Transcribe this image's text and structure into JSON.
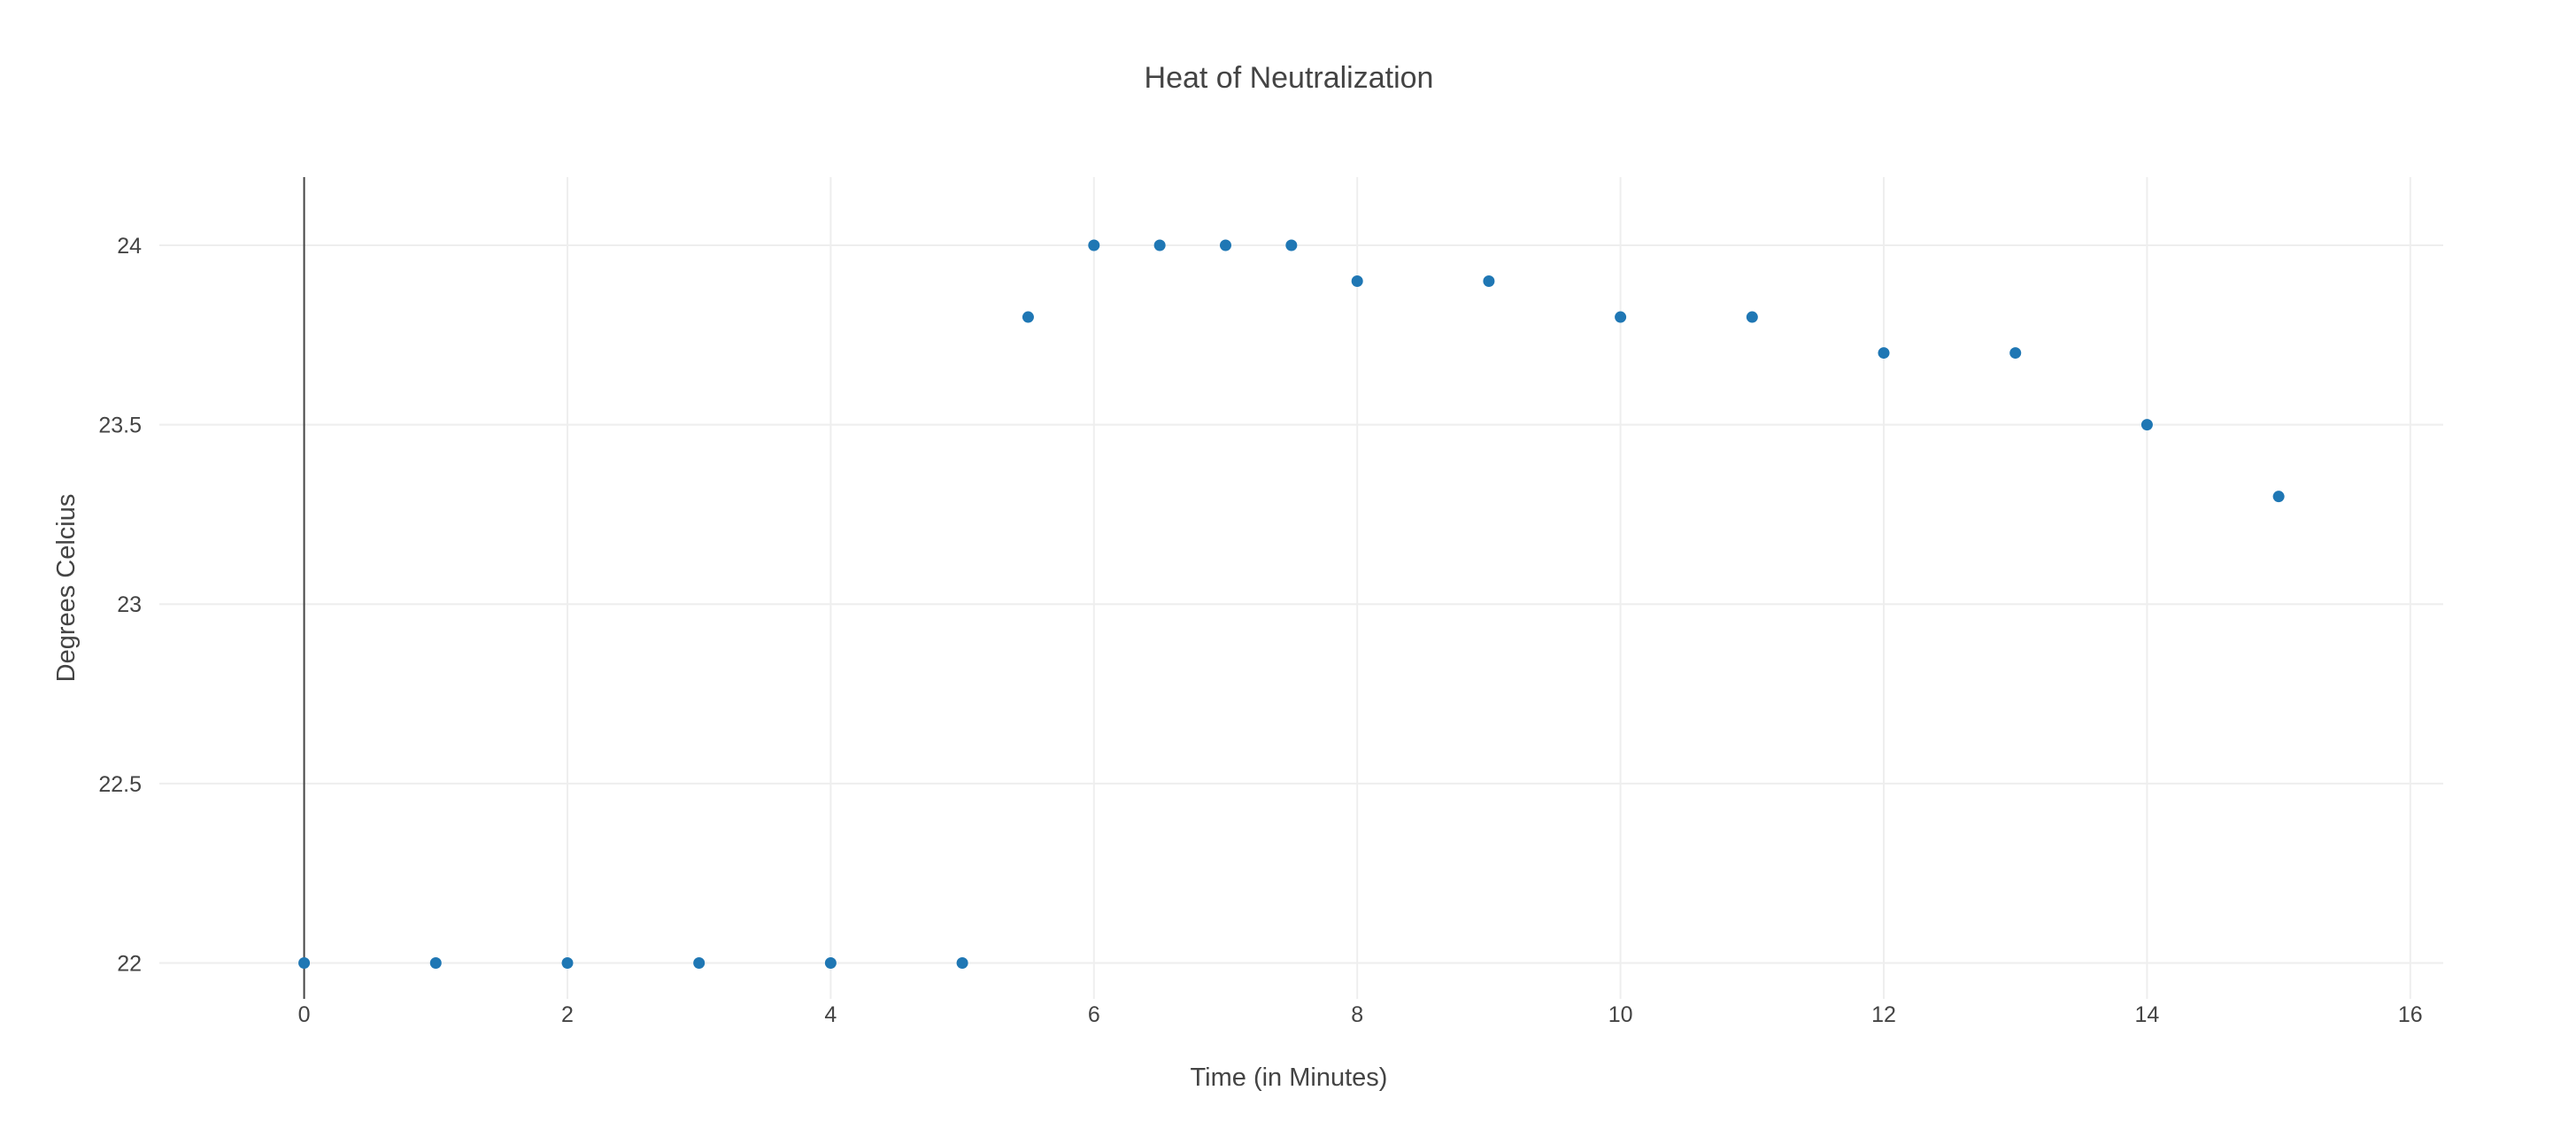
{
  "chart_data": {
    "type": "scatter",
    "title": "Heat of Neutralization",
    "xlabel": "Time (in Minutes)",
    "ylabel": "Degrees Celcius",
    "xlim": [
      -1.1,
      16.25
    ],
    "ylim": [
      21.9,
      24.19
    ],
    "x_ticks": [
      0,
      2,
      4,
      6,
      8,
      10,
      12,
      14,
      16
    ],
    "x_tick_labels": [
      "0",
      "2",
      "4",
      "6",
      "8",
      "10",
      "12",
      "14",
      "16"
    ],
    "y_ticks": [
      22,
      22.5,
      23,
      23.5,
      24
    ],
    "y_tick_labels": [
      "22",
      "22.5",
      "23",
      "23.5",
      "24"
    ],
    "grid": true,
    "legend": "none",
    "marker_color": "#1f77b4",
    "series": [
      {
        "x": [
          0,
          1,
          2,
          3,
          4,
          5,
          5.5,
          6,
          6.5,
          7,
          7.5,
          8,
          9,
          10,
          11,
          12,
          13,
          14,
          15
        ],
        "y": [
          22,
          22,
          22,
          22,
          22,
          22,
          23.8,
          24,
          24,
          24,
          24,
          23.9,
          23.9,
          23.8,
          23.8,
          23.7,
          23.7,
          23.5,
          23.3
        ]
      }
    ]
  }
}
